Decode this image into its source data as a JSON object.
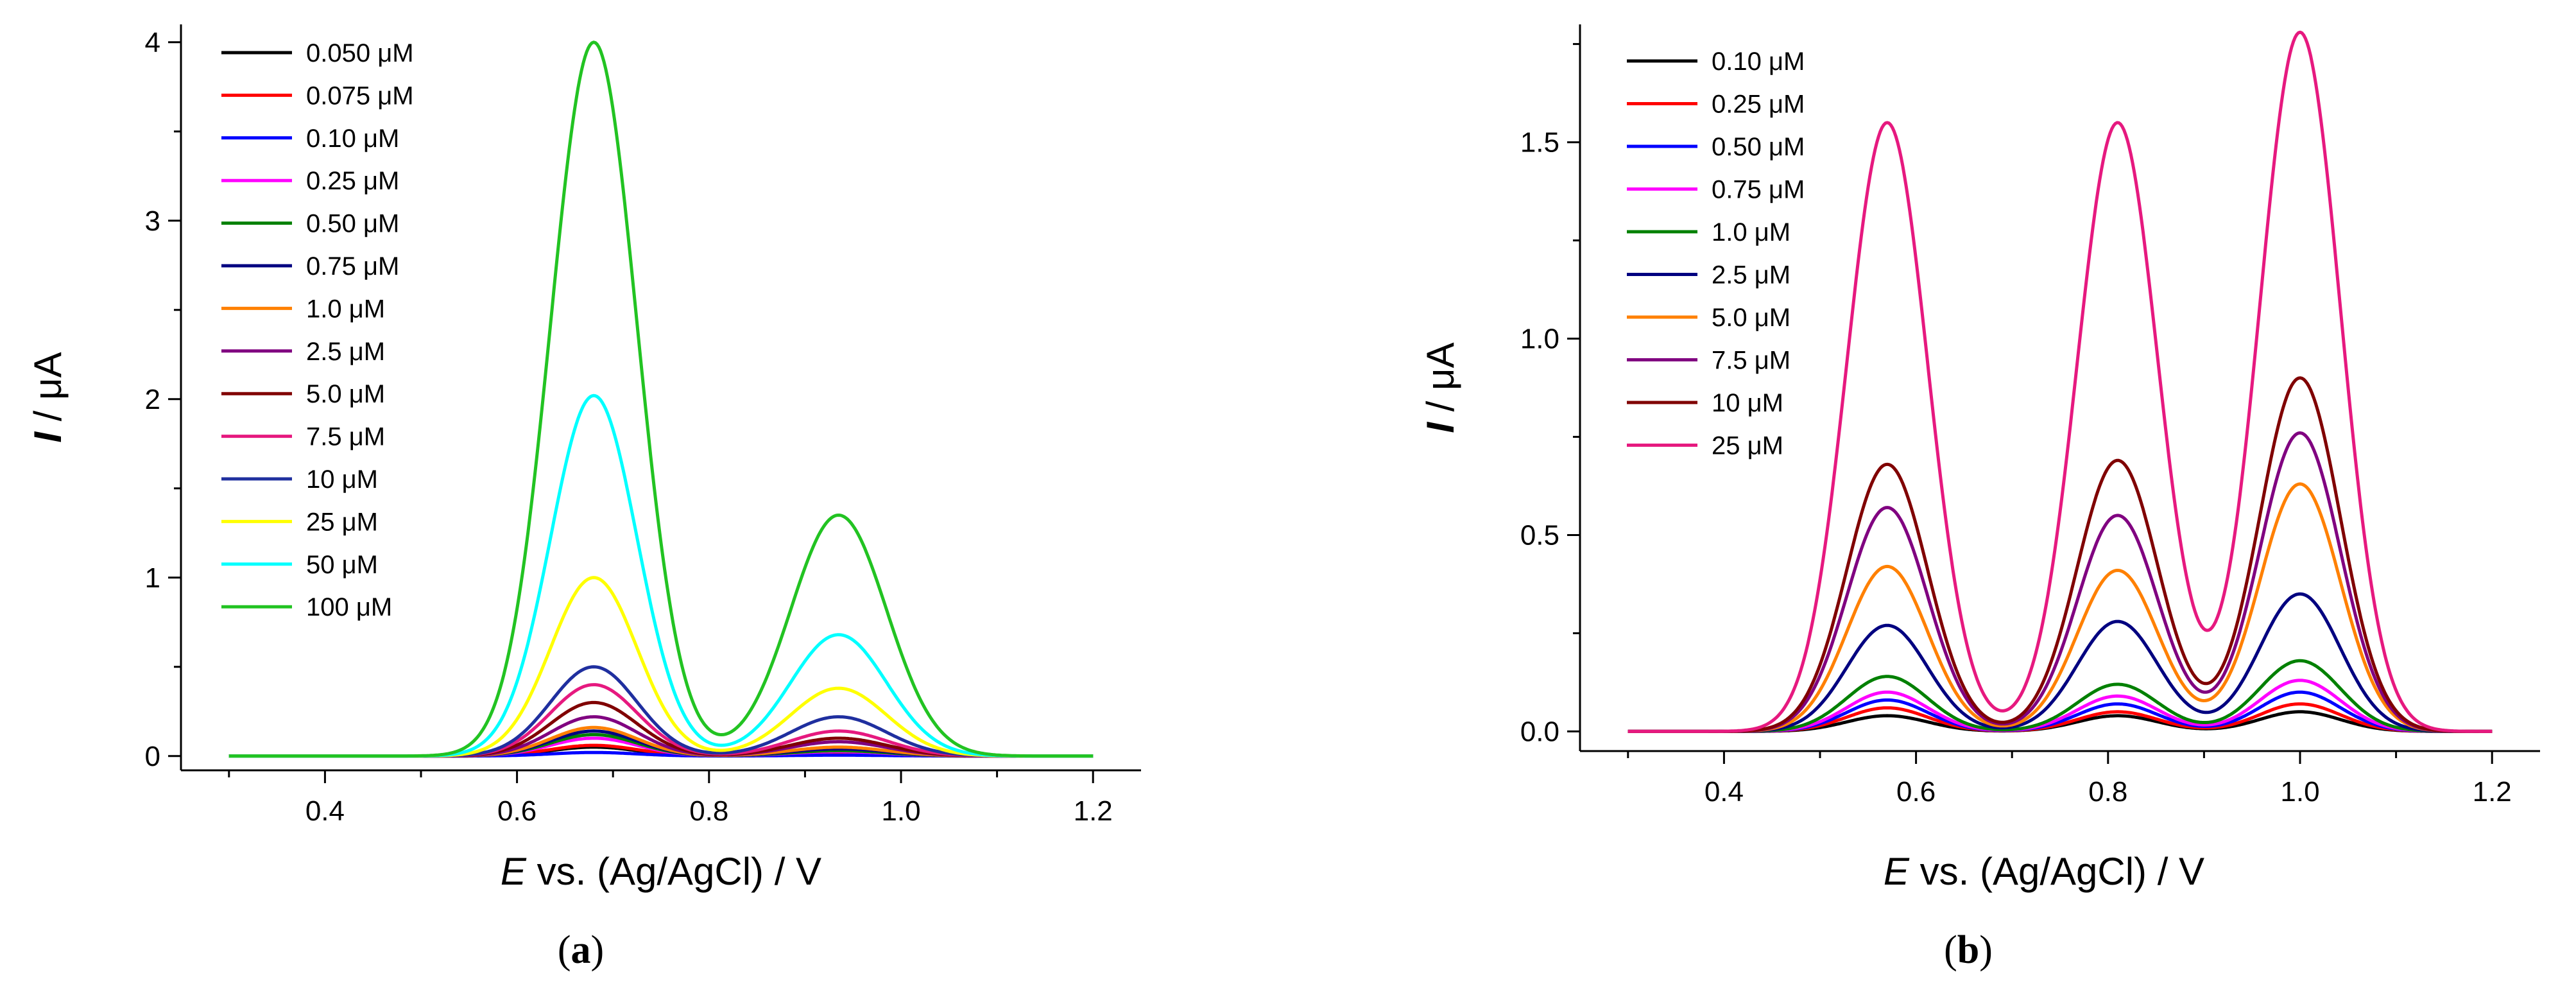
{
  "chart_data": [
    {
      "type": "line",
      "panel_label": "(a)",
      "panel_letter": "a",
      "xlabel": {
        "var": "E",
        "text": " vs. (Ag/AgCl) / V"
      },
      "ylabel": {
        "var": "I",
        "text": " / μA"
      },
      "xlim": [
        0.25,
        1.25
      ],
      "ylim": [
        -0.08,
        4.1
      ],
      "xticks": [
        0.4,
        0.6,
        0.8,
        1.0,
        1.2
      ],
      "xtick_labels": [
        "0.4",
        "0.6",
        "0.8",
        "1.0",
        "1.2"
      ],
      "yticks": [
        0,
        1,
        2,
        3,
        4
      ],
      "ytick_labels": [
        "0",
        "1",
        "2",
        "3",
        "4"
      ],
      "x_range": [
        0.3,
        1.2
      ],
      "peak_positions": [
        0.68,
        0.935
      ],
      "peak_widths": [
        0.045,
        0.05
      ],
      "valley": 0.83,
      "legend_position": "top-left",
      "series": [
        {
          "name": "0.050 μM",
          "color": "#000000",
          "peaks": [
            0.05,
            0.012
          ]
        },
        {
          "name": "0.075 μM",
          "color": "#ff0000",
          "peaks": [
            0.06,
            0.015
          ]
        },
        {
          "name": "0.10 μM",
          "color": "#0000ff",
          "peaks": [
            0.02,
            0.005
          ]
        },
        {
          "name": "0.25 μM",
          "color": "#ff00ff",
          "peaks": [
            0.1,
            0.025
          ]
        },
        {
          "name": "0.50 μM",
          "color": "#008000",
          "peaks": [
            0.12,
            0.03
          ]
        },
        {
          "name": "0.75 μM",
          "color": "#000080",
          "peaks": [
            0.14,
            0.04
          ]
        },
        {
          "name": "1.0 μM",
          "color": "#ff8000",
          "peaks": [
            0.16,
            0.05
          ]
        },
        {
          "name": "2.5 μM",
          "color": "#800080",
          "peaks": [
            0.22,
            0.08
          ]
        },
        {
          "name": "5.0 μM",
          "color": "#800000",
          "peaks": [
            0.3,
            0.1
          ]
        },
        {
          "name": "7.5 μM",
          "color": "#e6197f",
          "peaks": [
            0.4,
            0.14
          ]
        },
        {
          "name": "10 μM",
          "color": "#1f2f9f",
          "peaks": [
            0.5,
            0.22
          ]
        },
        {
          "name": "25 μM",
          "color": "#ffff00",
          "peaks": [
            1.0,
            0.38
          ]
        },
        {
          "name": "50 μM",
          "color": "#00ffff",
          "peaks": [
            2.02,
            0.68
          ]
        },
        {
          "name": "100 μM",
          "color": "#22c322",
          "peaks": [
            4.0,
            1.35
          ]
        }
      ]
    },
    {
      "type": "line",
      "panel_label": "(b)",
      "panel_letter": "b",
      "xlabel": {
        "var": "E",
        "text": " vs. (Ag/AgCl) / V"
      },
      "ylabel": {
        "var": "I",
        "text": " / μA"
      },
      "xlim": [
        0.25,
        1.25
      ],
      "ylim": [
        -0.05,
        1.8
      ],
      "xticks": [
        0.4,
        0.6,
        0.8,
        1.0,
        1.2
      ],
      "xtick_labels": [
        "0.4",
        "0.6",
        "0.8",
        "1.0",
        "1.2"
      ],
      "yticks": [
        0.0,
        0.5,
        1.0,
        1.5
      ],
      "ytick_labels": [
        "0.0",
        "0.5",
        "1.0",
        "1.5"
      ],
      "x_range": [
        0.3,
        1.2
      ],
      "peak_positions": [
        0.57,
        0.81,
        1.0
      ],
      "peak_widths": [
        0.042,
        0.042,
        0.042
      ],
      "legend_position": "top-left",
      "series": [
        {
          "name": "0.10 μM",
          "color": "#000000",
          "peaks": [
            0.04,
            0.04,
            0.05
          ]
        },
        {
          "name": "0.25 μM",
          "color": "#ff0000",
          "peaks": [
            0.06,
            0.05,
            0.07
          ]
        },
        {
          "name": "0.50 μM",
          "color": "#0000ff",
          "peaks": [
            0.08,
            0.07,
            0.1
          ]
        },
        {
          "name": "0.75 μM",
          "color": "#ff00ff",
          "peaks": [
            0.1,
            0.09,
            0.13
          ]
        },
        {
          "name": "1.0 μM",
          "color": "#008000",
          "peaks": [
            0.14,
            0.12,
            0.18
          ]
        },
        {
          "name": "2.5 μM",
          "color": "#000080",
          "peaks": [
            0.27,
            0.28,
            0.35
          ]
        },
        {
          "name": "5.0 μM",
          "color": "#ff8000",
          "peaks": [
            0.42,
            0.41,
            0.63
          ]
        },
        {
          "name": "7.5 μM",
          "color": "#800080",
          "peaks": [
            0.57,
            0.55,
            0.76
          ]
        },
        {
          "name": "10 μM",
          "color": "#800000",
          "peaks": [
            0.68,
            0.69,
            0.9
          ]
        },
        {
          "name": "25 μM",
          "color": "#e6197f",
          "peaks": [
            1.55,
            1.55,
            1.78
          ]
        }
      ]
    }
  ]
}
